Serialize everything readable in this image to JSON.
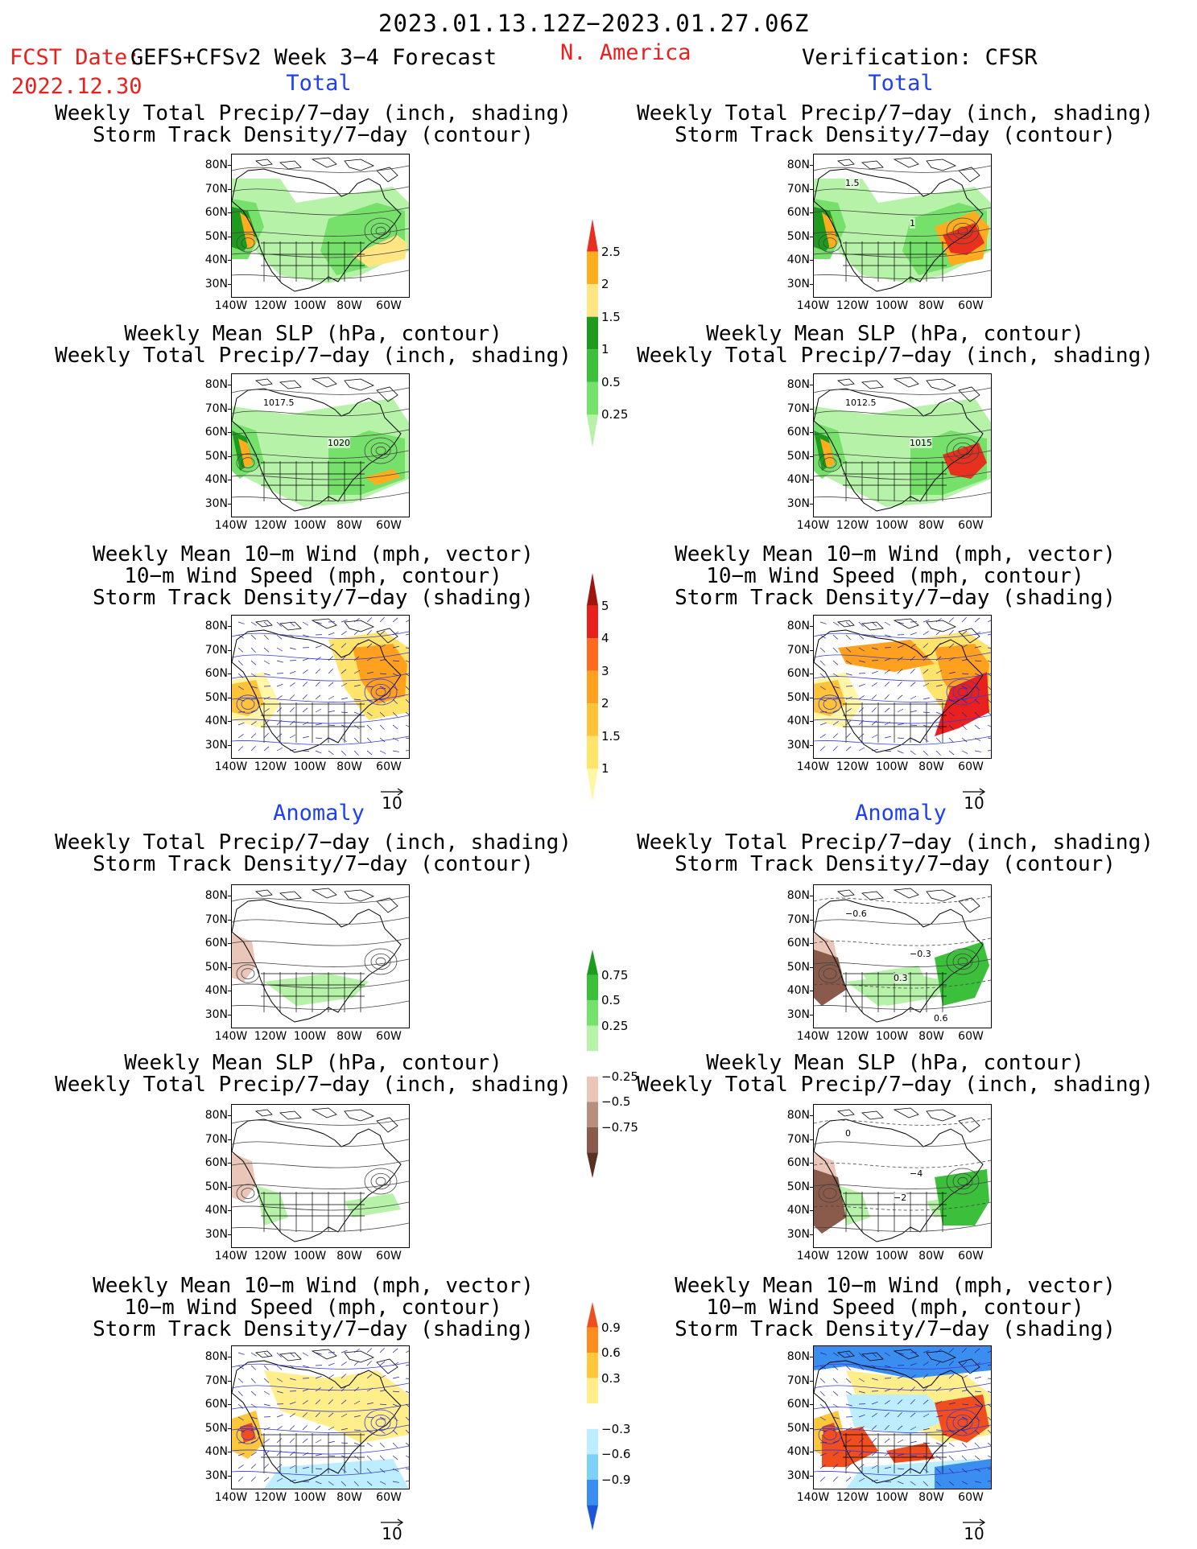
{
  "header": {
    "period": "2023.01.13.12Z−2023.01.27.06Z",
    "fcst_label": "FCST Date:",
    "fcst_product": "GEFS+CFSv2 Week 3−4 Forecast",
    "fcst_date": "2022.12.30",
    "region": "N. America",
    "verification": "Verification: CFSR"
  },
  "sections": {
    "total": "Total",
    "anomaly": "Anomaly"
  },
  "titles": {
    "p1": [
      "Weekly Total Precip/7−day (inch, shading)",
      "Storm Track Density/7−day (contour)"
    ],
    "p2": [
      "Weekly Mean SLP (hPa, contour)",
      "Weekly Total Precip/7−day (inch, shading)"
    ],
    "p3": [
      "Weekly Mean 10−m Wind (mph, vector)",
      "10−m Wind Speed (mph, contour)",
      "Storm Track Density/7−day (shading)"
    ]
  },
  "axes": {
    "lat_ticks": [
      "80N",
      "70N",
      "60N",
      "50N",
      "40N",
      "30N"
    ],
    "lon_ticks": [
      "140W",
      "120W",
      "100W",
      "80W",
      "60W"
    ]
  },
  "vector_ref": "10",
  "colorbars": {
    "precip_total": {
      "levels": [
        "0.25",
        "0.5",
        "1",
        "1.5",
        "2",
        "2.5"
      ],
      "colors": [
        "#b6f2a8",
        "#76e16a",
        "#3cc03c",
        "#1e9a1e",
        "#ffe683",
        "#ffad1e",
        "#e8301e"
      ]
    },
    "storm_total": {
      "levels": [
        "1",
        "1.5",
        "2",
        "3",
        "4",
        "5"
      ],
      "colors": [
        "#fff6a8",
        "#ffe46b",
        "#ffc33a",
        "#ffa01e",
        "#ff6a1e",
        "#e8201e",
        "#a01410"
      ]
    },
    "precip_anom": {
      "levels": [
        "0.75",
        "0.5",
        "0.25",
        "−0.25",
        "−0.5",
        "−0.75"
      ],
      "colors": [
        "#1e9a1e",
        "#3cc03c",
        "#76e16a",
        "#b6f2a8",
        "#ffffff",
        "#e9c6b8",
        "#b88e7e",
        "#8a5a4a",
        "#5a3020"
      ]
    },
    "storm_anom": {
      "levels": [
        "0.9",
        "0.6",
        "0.3",
        "−0.3",
        "−0.6",
        "−0.9"
      ],
      "colors": [
        "#f04e1e",
        "#ff8c1e",
        "#ffc83a",
        "#ffee8a",
        "#ffffff",
        "#bdeeff",
        "#7dd0f8",
        "#3a8ef0",
        "#1e56d8"
      ]
    }
  },
  "contour_labels": {
    "p1_right": [
      "1.5",
      "1"
    ],
    "p2_left": [
      "1017.5",
      "1020"
    ],
    "p2_right": [
      "1012.5",
      "1015"
    ],
    "p4_right": [
      "−0.6",
      "−0.3",
      "0.3",
      "0.6"
    ],
    "p5_right": [
      "0",
      "−4",
      "−2"
    ]
  }
}
